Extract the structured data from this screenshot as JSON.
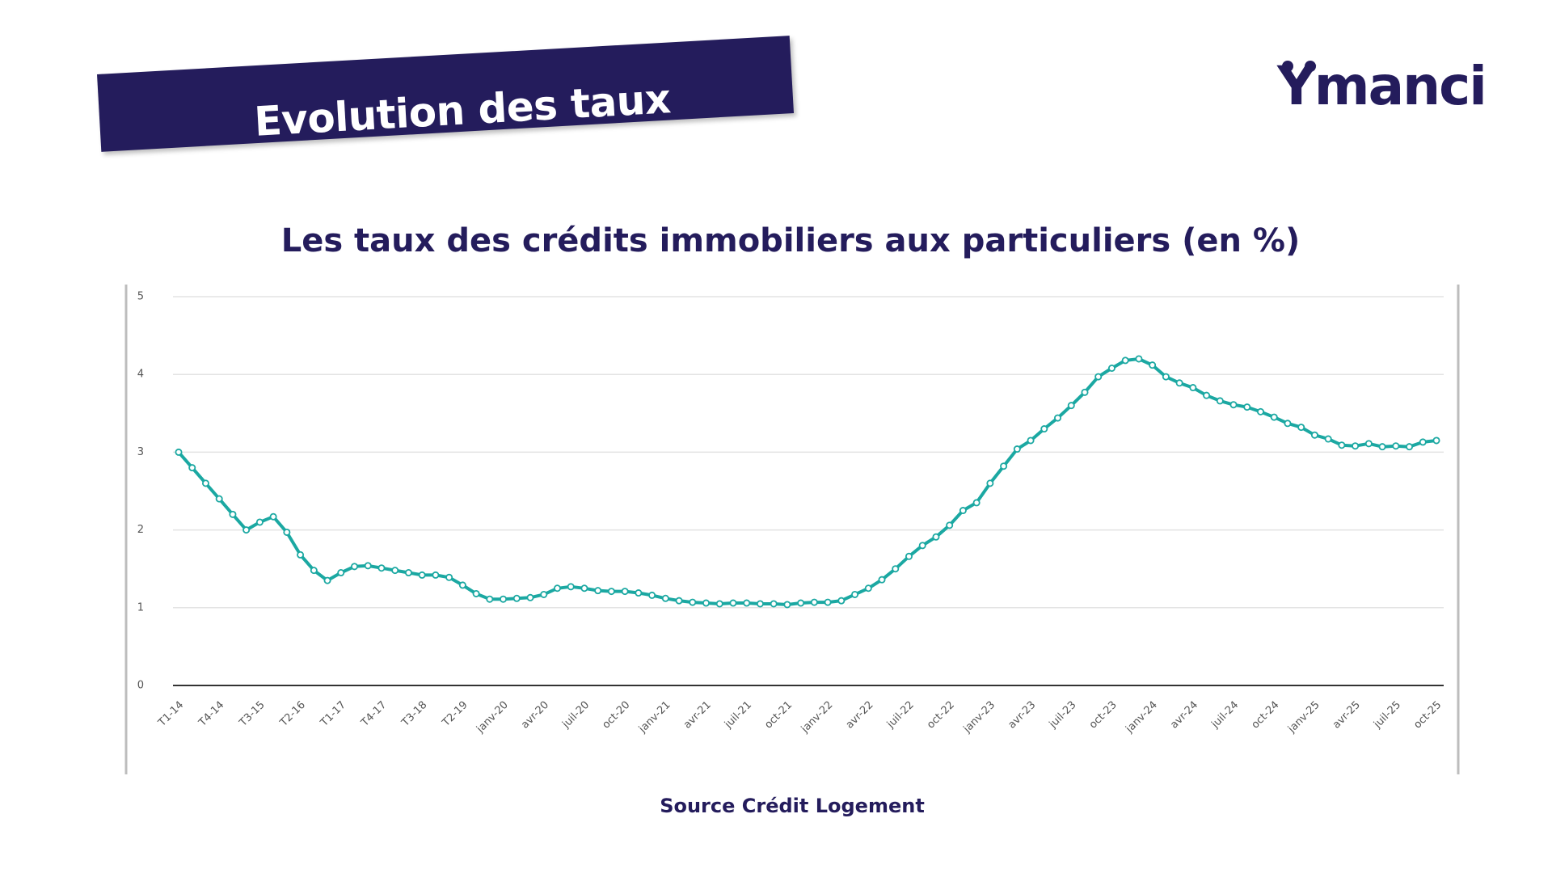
{
  "header": {
    "title": "Evolution des taux",
    "logo": "Ymanci"
  },
  "chart_data": {
    "type": "line",
    "title": "Les taux des crédits immobiliers aux particuliers (en %)",
    "categories": [
      "T1-14",
      null,
      null,
      "T4-14",
      null,
      null,
      "T3-15",
      null,
      null,
      "T2-16",
      null,
      null,
      "T1-17",
      null,
      null,
      "T4-17",
      null,
      null,
      "T3-18",
      null,
      null,
      "T2-19",
      null,
      null,
      "janv-20",
      null,
      null,
      "avr-20",
      null,
      null,
      "juil-20",
      null,
      null,
      "oct-20",
      null,
      null,
      "janv-21",
      null,
      null,
      "avr-21",
      null,
      null,
      "juil-21",
      null,
      null,
      "oct-21",
      null,
      null,
      "janv-22",
      null,
      null,
      "avr-22",
      null,
      null,
      "juil-22",
      null,
      null,
      "oct-22",
      null,
      null,
      "janv-23",
      null,
      null,
      "avr-23",
      null,
      null,
      "juil-23",
      null,
      null,
      "oct-23",
      null,
      null,
      "janv-24",
      null,
      null,
      "avr-24",
      null,
      null,
      "juil-24",
      null,
      null,
      "oct-24",
      null,
      null,
      "janv-25",
      null,
      null,
      "avr-25",
      null,
      null,
      "juil-25",
      null,
      null,
      "oct-25"
    ],
    "values": [
      3.0,
      2.8,
      2.6,
      2.4,
      2.2,
      2.0,
      2.1,
      2.17,
      1.97,
      1.68,
      1.48,
      1.35,
      1.45,
      1.53,
      1.54,
      1.51,
      1.48,
      1.45,
      1.42,
      1.42,
      1.39,
      1.29,
      1.18,
      1.11,
      1.11,
      1.12,
      1.13,
      1.17,
      1.25,
      1.27,
      1.25,
      1.22,
      1.21,
      1.21,
      1.19,
      1.16,
      1.12,
      1.09,
      1.07,
      1.06,
      1.05,
      1.06,
      1.06,
      1.05,
      1.05,
      1.04,
      1.06,
      1.07,
      1.07,
      1.09,
      1.17,
      1.25,
      1.36,
      1.5,
      1.66,
      1.8,
      1.91,
      2.06,
      2.25,
      2.35,
      2.6,
      2.82,
      3.04,
      3.15,
      3.3,
      3.44,
      3.6,
      3.77,
      3.97,
      4.08,
      4.18,
      4.2,
      4.12,
      3.97,
      3.89,
      3.83,
      3.73,
      3.66,
      3.61,
      3.58,
      3.52,
      3.45,
      3.37,
      3.32,
      3.22,
      3.17,
      3.09,
      3.08,
      3.11,
      3.07,
      3.08,
      3.07,
      3.13,
      3.15
    ],
    "color": "#1ba8a2",
    "ylim": [
      0,
      5
    ],
    "yticks": [
      0,
      1,
      2,
      3,
      4,
      5
    ],
    "grid": true,
    "source": "Source Crédit Logement"
  }
}
